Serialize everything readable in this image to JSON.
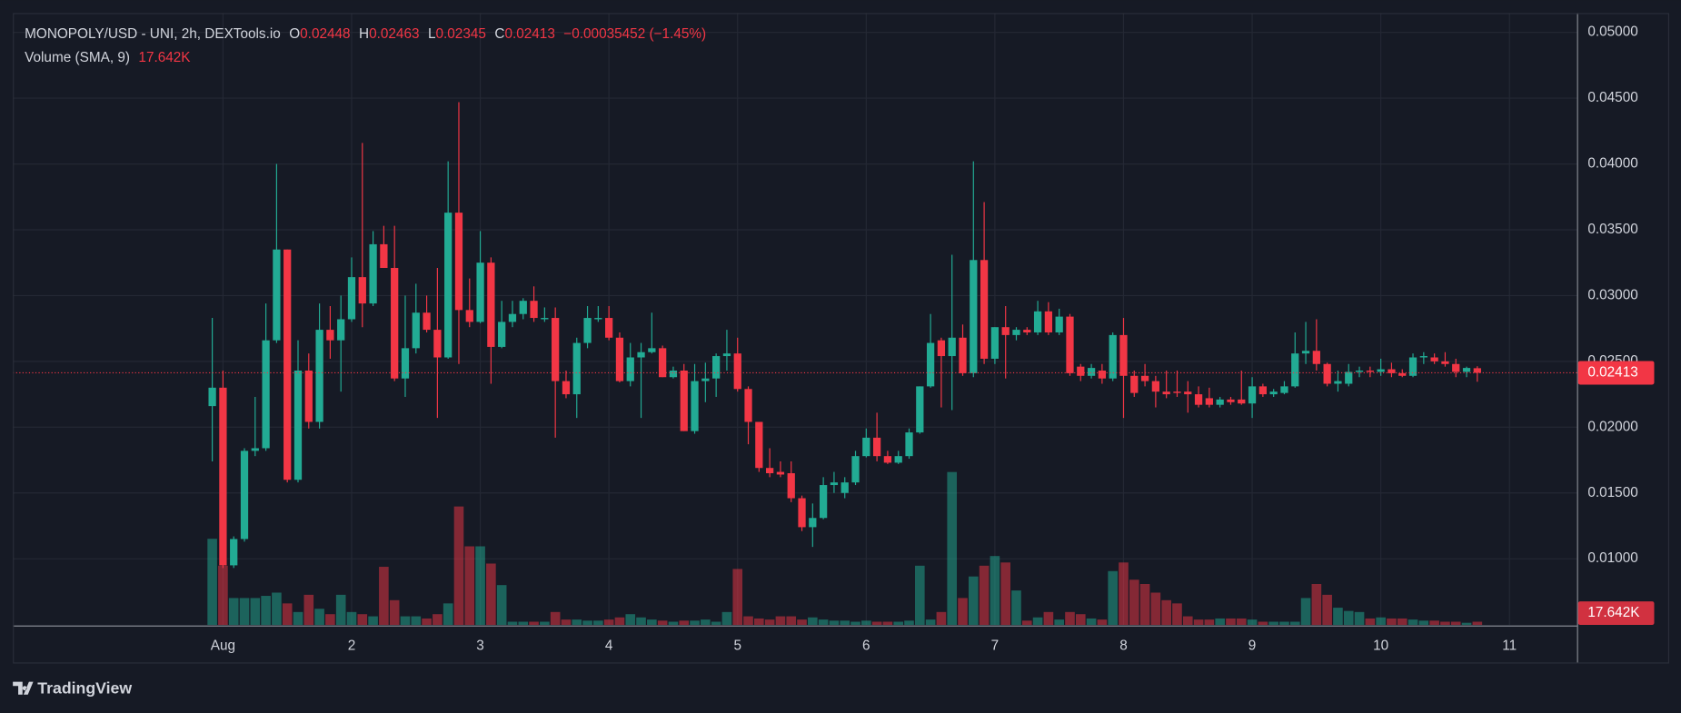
{
  "chart_data": {
    "type": "candlestick",
    "title": "MONOPOLY/USD - UNI, 2h, DEXTools.io",
    "legend": [
      {
        "key": "O",
        "value": 0.02448
      },
      {
        "key": "H",
        "value": 0.02463
      },
      {
        "key": "L",
        "value": 0.02345
      },
      {
        "key": "C",
        "value": 0.02413
      }
    ],
    "change": "−0.00035452 (−1.45%)",
    "volume_title": "Volume (SMA, 9)",
    "volume_sma": {
      "value": 17642,
      "label": "17.642K"
    },
    "watermark": "TradingView",
    "up_color": "#22ab94",
    "down_color": "#f23645",
    "grid": true,
    "xlim": [
      -18.6,
      127.3
    ],
    "xticks": [
      {
        "value": 1,
        "label": "Aug"
      },
      {
        "value": 13,
        "label": "2"
      },
      {
        "value": 25,
        "label": "3"
      },
      {
        "value": 37,
        "label": "4"
      },
      {
        "value": 49,
        "label": "5"
      },
      {
        "value": 61,
        "label": "6"
      },
      {
        "value": 73,
        "label": "7"
      },
      {
        "value": 85,
        "label": "8"
      },
      {
        "value": 97,
        "label": "9"
      },
      {
        "value": 109,
        "label": "10"
      },
      {
        "value": 121,
        "label": "11"
      }
    ],
    "ylim": [
      0.00497,
      0.05147
    ],
    "yticks": [
      {
        "value": 0.01,
        "label": "0.01000"
      },
      {
        "value": 0.015,
        "label": "0.01500"
      },
      {
        "value": 0.02,
        "label": "0.02000"
      },
      {
        "value": 0.025,
        "label": "0.02500"
      },
      {
        "value": 0.03,
        "label": "0.03000"
      },
      {
        "value": 0.035,
        "label": "0.03500"
      },
      {
        "value": 0.04,
        "label": "0.04000"
      },
      {
        "value": 0.045,
        "label": "0.04500"
      },
      {
        "value": 0.05,
        "label": "0.05000"
      }
    ],
    "y2lim": [
      0,
      2500000
    ],
    "open": [
      0.0216,
      0.023,
      0.0095,
      0.0115,
      0.0182,
      0.0184,
      0.0266,
      0.0335,
      0.016,
      0.0243,
      0.0204,
      0.0274,
      0.0266,
      0.0282,
      0.0314,
      0.0294,
      0.0339,
      0.0321,
      0.0237,
      0.026,
      0.0287,
      0.0274,
      0.0253,
      0.0363,
      0.0289,
      0.028,
      0.0325,
      0.0261,
      0.028,
      0.0286,
      0.0296,
      0.0282,
      0.0283,
      0.0235,
      0.0225,
      0.0264,
      0.0282,
      0.0283,
      0.0268,
      0.0235,
      0.0253,
      0.0257,
      0.026,
      0.0238,
      0.0243,
      0.0197,
      0.0235,
      0.0237,
      0.0254,
      0.0256,
      0.0229,
      0.0204,
      0.0169,
      0.0166,
      0.0165,
      0.0146,
      0.0124,
      0.0131,
      0.0156,
      0.015,
      0.0158,
      0.0178,
      0.0192,
      0.0178,
      0.0173,
      0.0178,
      0.0196,
      0.0231,
      0.0266,
      0.0254,
      0.0268,
      0.0241,
      0.0327,
      0.0252,
      0.0276,
      0.027,
      0.0274,
      0.0272,
      0.0288,
      0.0272,
      0.0284,
      0.0246,
      0.0239,
      0.0243,
      0.0237,
      0.027,
      0.0239,
      0.0239,
      0.0235,
      0.0227,
      0.0227,
      0.0227,
      0.0225,
      0.0222,
      0.0217,
      0.0221,
      0.0221,
      0.0218,
      0.0231,
      0.0225,
      0.0226,
      0.0231,
      0.0256,
      0.0258,
      0.0248,
      0.0233,
      0.0233,
      0.0242,
      0.0243,
      0.0242,
      0.0244,
      0.0241,
      0.0239,
      0.0253,
      0.0253,
      0.025,
      0.0248,
      0.0242,
      0.02448
    ],
    "high": [
      0.0283,
      0.0243,
      0.0117,
      0.0184,
      0.0223,
      0.0294,
      0.04,
      0.0335,
      0.0266,
      0.0256,
      0.0294,
      0.0292,
      0.03,
      0.0329,
      0.0416,
      0.0349,
      0.0353,
      0.0353,
      0.03,
      0.0309,
      0.03,
      0.0321,
      0.0402,
      0.0447,
      0.0313,
      0.0349,
      0.0329,
      0.0296,
      0.0296,
      0.0298,
      0.0307,
      0.0291,
      0.0291,
      0.0243,
      0.0268,
      0.0292,
      0.0292,
      0.0292,
      0.0272,
      0.0264,
      0.0264,
      0.0287,
      0.0262,
      0.0246,
      0.0248,
      0.0248,
      0.0249,
      0.0256,
      0.0274,
      0.0268,
      0.0231,
      0.0204,
      0.0184,
      0.0174,
      0.0174,
      0.0148,
      0.0142,
      0.0162,
      0.0166,
      0.0162,
      0.0182,
      0.0199,
      0.0211,
      0.0182,
      0.0182,
      0.0199,
      0.0231,
      0.0286,
      0.0268,
      0.0331,
      0.0278,
      0.0402,
      0.0371,
      0.0276,
      0.0292,
      0.0276,
      0.0276,
      0.0296,
      0.0295,
      0.029,
      0.0286,
      0.0248,
      0.0248,
      0.0248,
      0.0272,
      0.0283,
      0.0243,
      0.0248,
      0.0239,
      0.0243,
      0.0243,
      0.0235,
      0.0231,
      0.023,
      0.0223,
      0.0223,
      0.0243,
      0.0238,
      0.0233,
      0.0229,
      0.0235,
      0.0272,
      0.028,
      0.0282,
      0.0249,
      0.0243,
      0.0248,
      0.0246,
      0.0246,
      0.0252,
      0.0249,
      0.0244,
      0.0256,
      0.0257,
      0.0256,
      0.0257,
      0.0252,
      0.0246,
      0.02463
    ],
    "low": [
      0.0174,
      0.0093,
      0.0093,
      0.0113,
      0.0178,
      0.0182,
      0.0264,
      0.0158,
      0.0158,
      0.0199,
      0.0199,
      0.0252,
      0.0227,
      0.028,
      0.0276,
      0.0292,
      0.0321,
      0.0235,
      0.0223,
      0.0256,
      0.0272,
      0.0207,
      0.0252,
      0.0248,
      0.0276,
      0.0279,
      0.0233,
      0.026,
      0.0276,
      0.0282,
      0.028,
      0.028,
      0.0192,
      0.0222,
      0.0207,
      0.026,
      0.028,
      0.0266,
      0.0234,
      0.0231,
      0.0207,
      0.0256,
      0.0238,
      0.0237,
      0.0197,
      0.0195,
      0.0219,
      0.0223,
      0.0243,
      0.0227,
      0.0187,
      0.0166,
      0.0162,
      0.0162,
      0.0143,
      0.0121,
      0.0109,
      0.013,
      0.015,
      0.0146,
      0.0156,
      0.0177,
      0.0174,
      0.0172,
      0.0172,
      0.0176,
      0.0195,
      0.023,
      0.0215,
      0.0213,
      0.0239,
      0.0238,
      0.0248,
      0.0248,
      0.0237,
      0.0266,
      0.027,
      0.027,
      0.027,
      0.027,
      0.0239,
      0.0235,
      0.0237,
      0.0233,
      0.0235,
      0.0207,
      0.0223,
      0.0231,
      0.0215,
      0.0222,
      0.0223,
      0.0211,
      0.0215,
      0.0215,
      0.0215,
      0.0217,
      0.0217,
      0.0207,
      0.0223,
      0.0223,
      0.0225,
      0.023,
      0.0248,
      0.0243,
      0.0231,
      0.0227,
      0.0231,
      0.0238,
      0.0238,
      0.0239,
      0.0238,
      0.0238,
      0.0238,
      0.0248,
      0.0248,
      0.0246,
      0.0238,
      0.0238,
      0.02345
    ],
    "close": [
      0.023,
      0.0095,
      0.0115,
      0.0182,
      0.0184,
      0.0266,
      0.0335,
      0.016,
      0.0243,
      0.0204,
      0.0274,
      0.0266,
      0.0282,
      0.0314,
      0.0294,
      0.0339,
      0.0321,
      0.0237,
      0.026,
      0.0287,
      0.0274,
      0.0253,
      0.0363,
      0.0289,
      0.028,
      0.0325,
      0.0261,
      0.028,
      0.0286,
      0.0296,
      0.0283,
      0.0283,
      0.0235,
      0.0225,
      0.0264,
      0.0283,
      0.0283,
      0.0268,
      0.0235,
      0.0253,
      0.0257,
      0.026,
      0.0238,
      0.0243,
      0.0197,
      0.0235,
      0.0237,
      0.0254,
      0.0256,
      0.0229,
      0.0204,
      0.0169,
      0.0165,
      0.0164,
      0.0146,
      0.0124,
      0.0131,
      0.0156,
      0.0158,
      0.0158,
      0.0178,
      0.0192,
      0.0178,
      0.0173,
      0.0178,
      0.0196,
      0.0231,
      0.0264,
      0.0254,
      0.0268,
      0.0241,
      0.0327,
      0.0252,
      0.0276,
      0.027,
      0.0274,
      0.0272,
      0.0288,
      0.0272,
      0.0284,
      0.0241,
      0.0239,
      0.0245,
      0.0237,
      0.027,
      0.0239,
      0.0226,
      0.0235,
      0.0227,
      0.0225,
      0.0226,
      0.0225,
      0.0217,
      0.0217,
      0.0221,
      0.0219,
      0.0218,
      0.0231,
      0.0225,
      0.0227,
      0.0231,
      0.0256,
      0.0258,
      0.0248,
      0.0233,
      0.0235,
      0.0242,
      0.0243,
      0.0242,
      0.0244,
      0.0241,
      0.0239,
      0.0253,
      0.0254,
      0.025,
      0.0248,
      0.0242,
      0.0245,
      0.02413
    ],
    "volume": [
      352000,
      242000,
      110000,
      110000,
      110000,
      118800,
      132000,
      88000,
      52800,
      123200,
      66000,
      44000,
      123200,
      52800,
      44000,
      35200,
      237600,
      101200,
      35200,
      35200,
      26400,
      44000,
      88000,
      484000,
      321200,
      321200,
      250800,
      162800,
      13200,
      13200,
      13200,
      13200,
      52800,
      22000,
      22000,
      17600,
      17600,
      22000,
      30800,
      44000,
      30800,
      22000,
      17600,
      13200,
      17600,
      17600,
      22000,
      13200,
      52800,
      228800,
      35200,
      26400,
      22000,
      35200,
      35200,
      22000,
      30800,
      22000,
      17600,
      17600,
      13200,
      17600,
      13200,
      13200,
      13200,
      17600,
      242000,
      22000,
      52800,
      624800,
      110000,
      198000,
      242000,
      281600,
      255200,
      140800,
      17600,
      30800,
      52800,
      22000,
      52800,
      44000,
      26400,
      22000,
      220000,
      255200,
      184800,
      167200,
      132000,
      101200,
      88000,
      35200,
      22000,
      22000,
      26400,
      26400,
      26400,
      22000,
      13200,
      13200,
      13200,
      13200,
      110000,
      167200,
      123200,
      70400,
      57200,
      52800,
      26400,
      30800,
      26400,
      26400,
      22000,
      17600,
      17600,
      13200,
      13200,
      8800,
      13200
    ]
  }
}
